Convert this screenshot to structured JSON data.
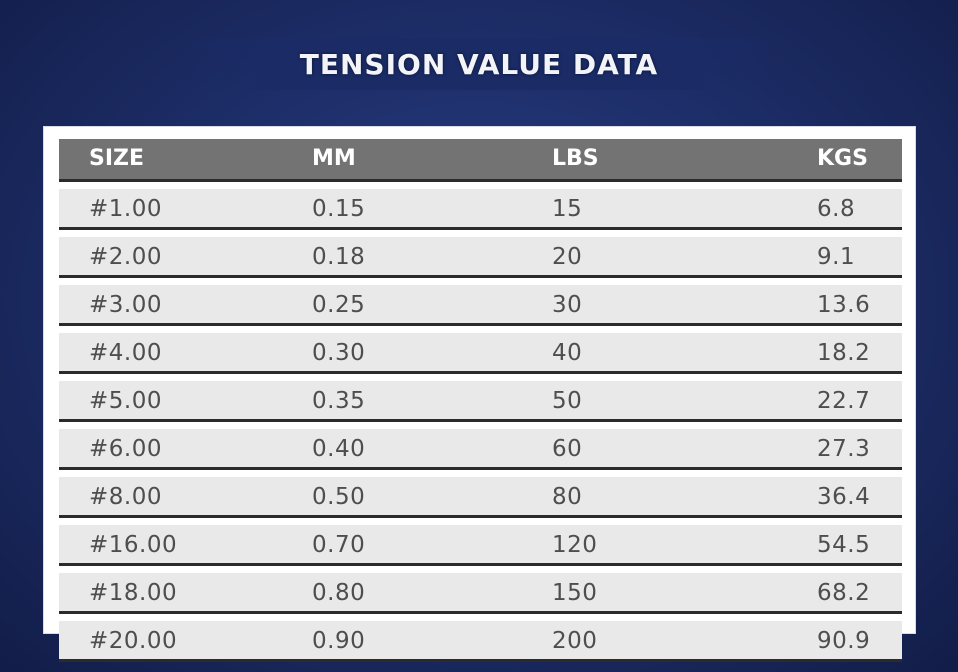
{
  "title": "TENSION VALUE DATA",
  "table": {
    "headers": [
      "SIZE",
      "MM",
      "LBS",
      "KGS"
    ],
    "rows": [
      [
        "#1.00",
        "0.15",
        "15",
        "6.8"
      ],
      [
        "#2.00",
        "0.18",
        "20",
        "9.1"
      ],
      [
        "#3.00",
        "0.25",
        "30",
        "13.6"
      ],
      [
        "#4.00",
        "0.30",
        "40",
        "18.2"
      ],
      [
        "#5.00",
        "0.35",
        "50",
        "22.7"
      ],
      [
        "#6.00",
        "0.40",
        "60",
        "27.3"
      ],
      [
        "#8.00",
        "0.50",
        "80",
        "36.4"
      ],
      [
        "#16.00",
        "0.70",
        "120",
        "54.5"
      ],
      [
        "#18.00",
        "0.80",
        "150",
        "68.2"
      ],
      [
        "#20.00",
        "0.90",
        "200",
        "90.9"
      ]
    ]
  },
  "colors": {
    "background": "#1e2f6b",
    "header_fill": "#737373",
    "row_fill": "#e9e9e9",
    "rule": "#2b2b2b",
    "text": "#4e4e4e"
  }
}
